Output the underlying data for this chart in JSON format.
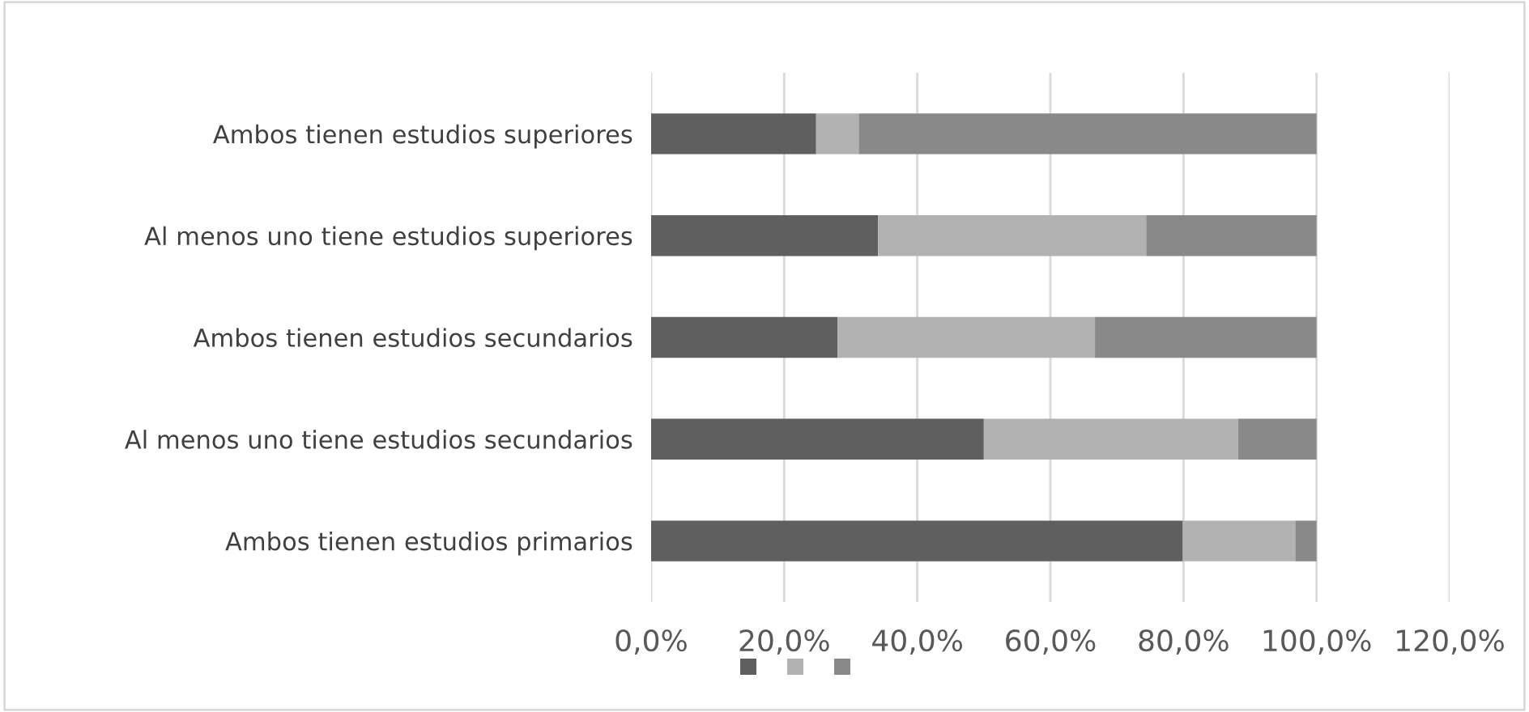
{
  "chart_data": {
    "type": "bar",
    "orientation": "horizontal",
    "stacked": true,
    "categories": [
      "Ambos tienen estudios superiores",
      "Al menos uno tiene estudios superiores",
      "Ambos tienen estudios secundarios",
      "Al menos uno tiene estudios secundarios",
      "Ambos tienen estudios primarios"
    ],
    "series": [
      {
        "color": "#5f5f5f",
        "values": [
          24.8,
          34.1,
          28.0,
          50.0,
          79.9
        ]
      },
      {
        "color": "#b2b2b2",
        "values": [
          6.4,
          40.3,
          38.7,
          38.2,
          16.9
        ]
      },
      {
        "color": "#898989",
        "values": [
          68.8,
          25.6,
          33.3,
          11.8,
          3.2
        ]
      }
    ],
    "xlim": [
      0,
      120
    ],
    "xticks": [
      {
        "value": 0,
        "label": "0,0%"
      },
      {
        "value": 20,
        "label": "20,0%"
      },
      {
        "value": 40,
        "label": "40,0%"
      },
      {
        "value": 60,
        "label": "60,0%"
      },
      {
        "value": 80,
        "label": "80,0%"
      },
      {
        "value": 100,
        "label": "100,0%"
      },
      {
        "value": 120,
        "label": "120,0%"
      }
    ],
    "grid": "x"
  }
}
